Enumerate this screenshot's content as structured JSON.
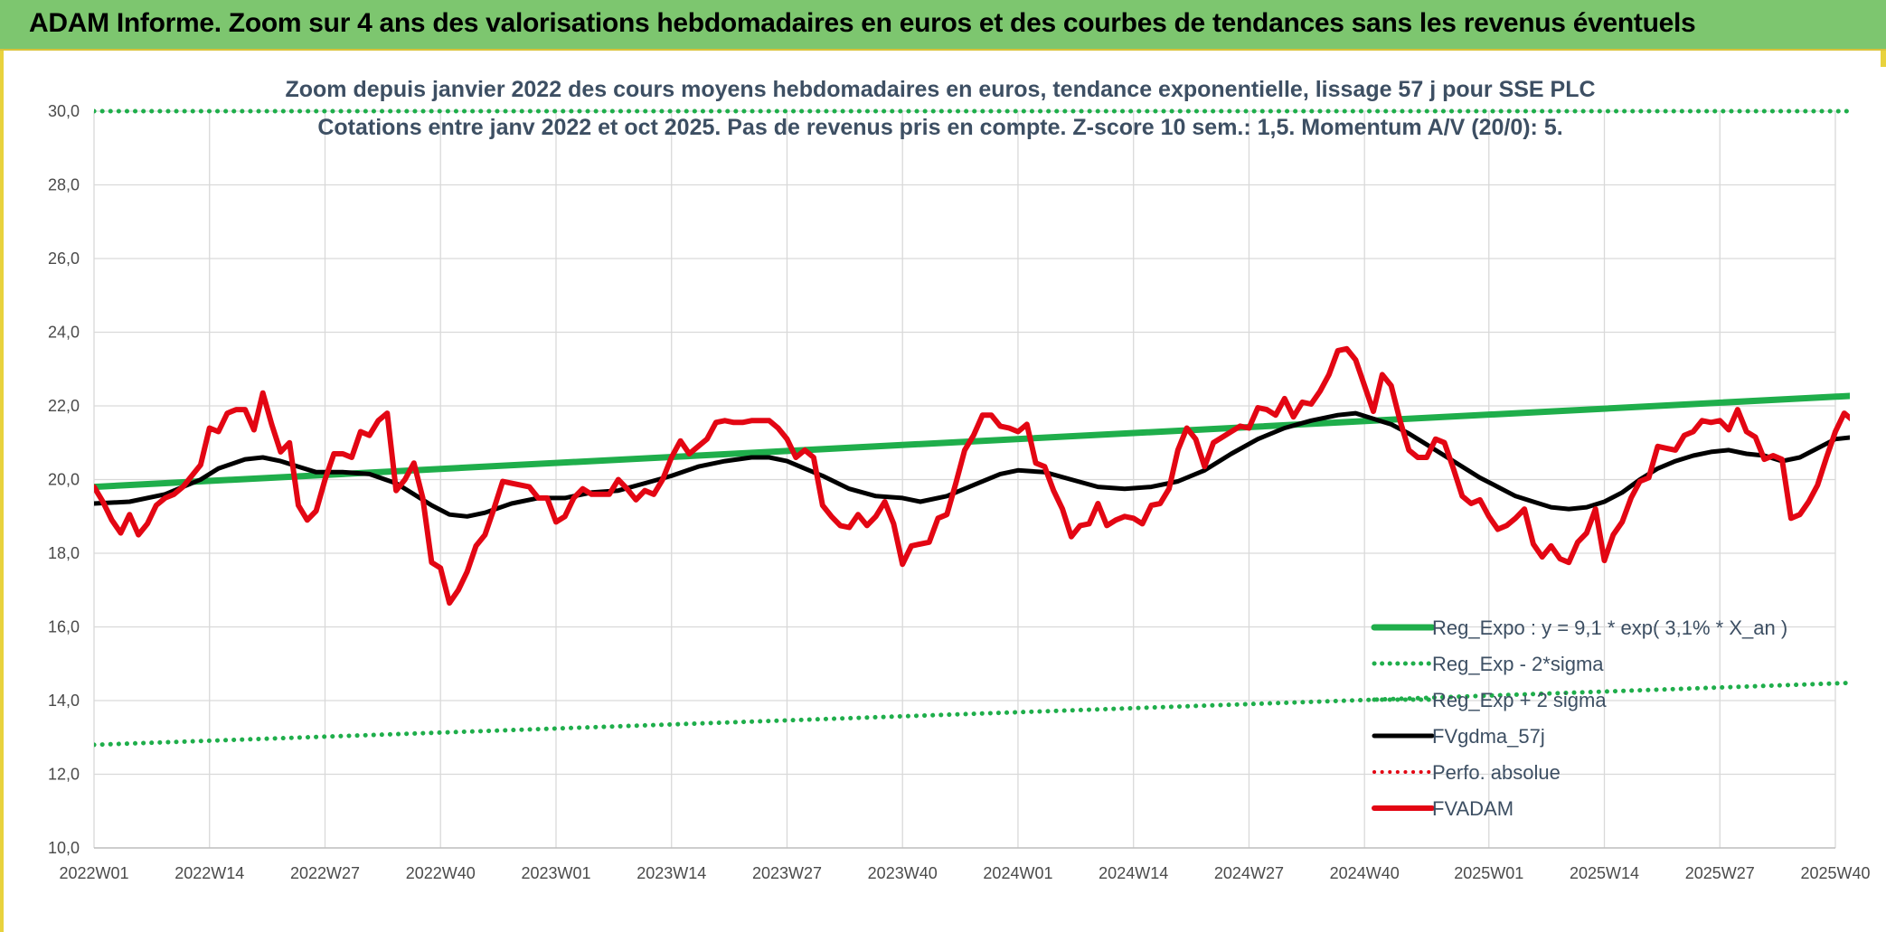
{
  "banner": {
    "title": "ADAM Informe. Zoom sur 4 ans des valorisations hebdomadaires en euros et des courbes de tendances sans les revenus éventuels"
  },
  "chart_data": {
    "type": "line",
    "title": "Zoom depuis janvier 2022 des cours moyens hebdomadaires en euros, tendance exponentielle, lissage 57 j pour SSE PLC",
    "subtitle": "Cotations entre janv 2022 et oct 2025. Pas de revenus pris en compte. Z-score 10 sem.: 1,5. Momentum A/V (20/0): 5.",
    "xlabel": "",
    "ylabel": "",
    "ylim": [
      10,
      30
    ],
    "yticks": [
      "10,0",
      "12,0",
      "14,0",
      "16,0",
      "18,0",
      "20,0",
      "22,0",
      "24,0",
      "26,0",
      "28,0",
      "30,0"
    ],
    "x_range": [
      0,
      196
    ],
    "x_ticks": [
      {
        "label": "2022W01",
        "x": 0
      },
      {
        "label": "2022W14",
        "x": 13
      },
      {
        "label": "2022W27",
        "x": 26
      },
      {
        "label": "2022W40",
        "x": 39
      },
      {
        "label": "2023W01",
        "x": 52
      },
      {
        "label": "2023W14",
        "x": 65
      },
      {
        "label": "2023W27",
        "x": 78
      },
      {
        "label": "2023W40",
        "x": 91
      },
      {
        "label": "2024W01",
        "x": 104
      },
      {
        "label": "2024W14",
        "x": 117
      },
      {
        "label": "2024W27",
        "x": 130
      },
      {
        "label": "2024W40",
        "x": 143
      },
      {
        "label": "2025W01",
        "x": 157
      },
      {
        "label": "2025W14",
        "x": 170
      },
      {
        "label": "2025W27",
        "x": 183
      },
      {
        "label": "2025W40",
        "x": 196
      }
    ],
    "grid": true,
    "legend_position": "bottom-right",
    "series": [
      {
        "name": "Reg_Expo : y = 9,1 * exp( 3,1% *  X_an )",
        "color": "#1fae4b",
        "style": "solid",
        "width": 7,
        "points": [
          [
            0,
            19.8
          ],
          [
            200,
            22.3
          ]
        ]
      },
      {
        "name": "Reg_Exp - 2*sigma",
        "color": "#1fae4b",
        "style": "dotted",
        "width": 5,
        "points": [
          [
            0,
            12.8
          ],
          [
            200,
            14.5
          ]
        ]
      },
      {
        "name": "Reg_Exp + 2 sigma",
        "color": "#1fae4b",
        "style": "dotted",
        "width": 5,
        "points": [
          [
            0,
            30.0
          ],
          [
            200,
            30.0
          ]
        ]
      },
      {
        "name": "FVgdma_57j",
        "color": "#000000",
        "style": "solid",
        "width": 5,
        "points": [
          [
            0,
            19.35
          ],
          [
            4,
            19.4
          ],
          [
            8,
            19.6
          ],
          [
            12,
            20.0
          ],
          [
            14,
            20.3
          ],
          [
            17,
            20.55
          ],
          [
            19,
            20.6
          ],
          [
            21,
            20.5
          ],
          [
            23,
            20.35
          ],
          [
            25,
            20.2
          ],
          [
            28,
            20.2
          ],
          [
            31,
            20.15
          ],
          [
            34,
            19.9
          ],
          [
            36,
            19.6
          ],
          [
            38,
            19.3
          ],
          [
            40,
            19.05
          ],
          [
            42,
            19.0
          ],
          [
            44,
            19.1
          ],
          [
            47,
            19.35
          ],
          [
            50,
            19.5
          ],
          [
            53,
            19.5
          ],
          [
            56,
            19.65
          ],
          [
            59,
            19.7
          ],
          [
            62,
            19.9
          ],
          [
            65,
            20.1
          ],
          [
            68,
            20.35
          ],
          [
            71,
            20.5
          ],
          [
            74,
            20.6
          ],
          [
            76,
            20.6
          ],
          [
            78,
            20.5
          ],
          [
            80,
            20.3
          ],
          [
            82,
            20.1
          ],
          [
            85,
            19.75
          ],
          [
            88,
            19.55
          ],
          [
            91,
            19.5
          ],
          [
            93,
            19.4
          ],
          [
            96,
            19.55
          ],
          [
            99,
            19.85
          ],
          [
            102,
            20.15
          ],
          [
            104,
            20.25
          ],
          [
            107,
            20.2
          ],
          [
            110,
            20.0
          ],
          [
            113,
            19.8
          ],
          [
            116,
            19.75
          ],
          [
            119,
            19.8
          ],
          [
            122,
            19.95
          ],
          [
            125,
            20.25
          ],
          [
            128,
            20.7
          ],
          [
            131,
            21.1
          ],
          [
            134,
            21.4
          ],
          [
            137,
            21.6
          ],
          [
            140,
            21.75
          ],
          [
            142,
            21.8
          ],
          [
            144,
            21.65
          ],
          [
            146,
            21.5
          ],
          [
            148,
            21.25
          ],
          [
            150,
            20.95
          ],
          [
            152,
            20.65
          ],
          [
            154,
            20.35
          ],
          [
            156,
            20.05
          ],
          [
            158,
            19.8
          ],
          [
            160,
            19.55
          ],
          [
            162,
            19.4
          ],
          [
            164,
            19.25
          ],
          [
            166,
            19.2
          ],
          [
            168,
            19.25
          ],
          [
            170,
            19.4
          ],
          [
            172,
            19.65
          ],
          [
            174,
            20.0
          ],
          [
            176,
            20.3
          ],
          [
            178,
            20.5
          ],
          [
            180,
            20.65
          ],
          [
            182,
            20.75
          ],
          [
            184,
            20.8
          ],
          [
            186,
            20.7
          ],
          [
            188,
            20.65
          ],
          [
            190,
            20.5
          ],
          [
            192,
            20.6
          ],
          [
            194,
            20.85
          ],
          [
            196,
            21.1
          ],
          [
            200,
            21.2
          ]
        ]
      },
      {
        "name": "Perfo. absolue",
        "color": "#e30613",
        "style": "dotted",
        "width": 4,
        "points": []
      },
      {
        "name": "FVADAM",
        "color": "#e30613",
        "style": "solid",
        "width": 6,
        "points": [
          [
            0,
            19.8
          ],
          [
            1,
            19.4
          ],
          [
            2,
            18.9
          ],
          [
            3,
            18.55
          ],
          [
            4,
            19.05
          ],
          [
            5,
            18.5
          ],
          [
            6,
            18.8
          ],
          [
            7,
            19.3
          ],
          [
            8,
            19.5
          ],
          [
            9,
            19.6
          ],
          [
            10,
            19.8
          ],
          [
            11,
            20.1
          ],
          [
            12,
            20.4
          ],
          [
            13,
            21.4
          ],
          [
            14,
            21.3
          ],
          [
            15,
            21.8
          ],
          [
            16,
            21.9
          ],
          [
            17,
            21.9
          ],
          [
            18,
            21.35
          ],
          [
            19,
            22.35
          ],
          [
            20,
            21.5
          ],
          [
            21,
            20.75
          ],
          [
            22,
            21.0
          ],
          [
            23,
            19.3
          ],
          [
            24,
            18.9
          ],
          [
            25,
            19.15
          ],
          [
            26,
            20.0
          ],
          [
            27,
            20.7
          ],
          [
            28,
            20.7
          ],
          [
            29,
            20.6
          ],
          [
            30,
            21.3
          ],
          [
            31,
            21.2
          ],
          [
            32,
            21.6
          ],
          [
            33,
            21.8
          ],
          [
            34,
            19.7
          ],
          [
            35,
            20.0
          ],
          [
            36,
            20.45
          ],
          [
            37,
            19.5
          ],
          [
            38,
            17.75
          ],
          [
            39,
            17.6
          ],
          [
            40,
            16.65
          ],
          [
            41,
            17.0
          ],
          [
            42,
            17.5
          ],
          [
            43,
            18.2
          ],
          [
            44,
            18.5
          ],
          [
            45,
            19.2
          ],
          [
            46,
            19.95
          ],
          [
            47,
            19.9
          ],
          [
            48,
            19.85
          ],
          [
            49,
            19.8
          ],
          [
            50,
            19.5
          ],
          [
            51,
            19.5
          ],
          [
            52,
            18.85
          ],
          [
            53,
            19.0
          ],
          [
            54,
            19.5
          ],
          [
            55,
            19.75
          ],
          [
            56,
            19.6
          ],
          [
            57,
            19.6
          ],
          [
            58,
            19.6
          ],
          [
            59,
            20.0
          ],
          [
            60,
            19.75
          ],
          [
            61,
            19.45
          ],
          [
            62,
            19.7
          ],
          [
            63,
            19.6
          ],
          [
            64,
            20.0
          ],
          [
            65,
            20.6
          ],
          [
            66,
            21.05
          ],
          [
            67,
            20.7
          ],
          [
            68,
            20.9
          ],
          [
            69,
            21.1
          ],
          [
            70,
            21.55
          ],
          [
            71,
            21.6
          ],
          [
            72,
            21.55
          ],
          [
            73,
            21.55
          ],
          [
            74,
            21.6
          ],
          [
            75,
            21.6
          ],
          [
            76,
            21.6
          ],
          [
            77,
            21.4
          ],
          [
            78,
            21.1
          ],
          [
            79,
            20.6
          ],
          [
            80,
            20.8
          ],
          [
            81,
            20.6
          ],
          [
            82,
            19.3
          ],
          [
            83,
            19.0
          ],
          [
            84,
            18.75
          ],
          [
            85,
            18.7
          ],
          [
            86,
            19.05
          ],
          [
            87,
            18.75
          ],
          [
            88,
            19.0
          ],
          [
            89,
            19.4
          ],
          [
            90,
            18.8
          ],
          [
            91,
            17.7
          ],
          [
            92,
            18.2
          ],
          [
            93,
            18.25
          ],
          [
            94,
            18.3
          ],
          [
            95,
            18.95
          ],
          [
            96,
            19.05
          ],
          [
            97,
            19.9
          ],
          [
            98,
            20.8
          ],
          [
            99,
            21.2
          ],
          [
            100,
            21.75
          ],
          [
            101,
            21.75
          ],
          [
            102,
            21.45
          ],
          [
            103,
            21.4
          ],
          [
            104,
            21.3
          ],
          [
            105,
            21.5
          ],
          [
            106,
            20.45
          ],
          [
            107,
            20.35
          ],
          [
            108,
            19.7
          ],
          [
            109,
            19.2
          ],
          [
            110,
            18.45
          ],
          [
            111,
            18.75
          ],
          [
            112,
            18.8
          ],
          [
            113,
            19.35
          ],
          [
            114,
            18.75
          ],
          [
            115,
            18.9
          ],
          [
            116,
            19.0
          ],
          [
            117,
            18.95
          ],
          [
            118,
            18.8
          ],
          [
            119,
            19.3
          ],
          [
            120,
            19.35
          ],
          [
            121,
            19.75
          ],
          [
            122,
            20.8
          ],
          [
            123,
            21.4
          ],
          [
            124,
            21.1
          ],
          [
            125,
            20.35
          ],
          [
            126,
            21.0
          ],
          [
            127,
            21.15
          ],
          [
            128,
            21.3
          ],
          [
            129,
            21.45
          ],
          [
            130,
            21.4
          ],
          [
            131,
            21.95
          ],
          [
            132,
            21.9
          ],
          [
            133,
            21.75
          ],
          [
            134,
            22.2
          ],
          [
            135,
            21.7
          ],
          [
            136,
            22.1
          ],
          [
            137,
            22.05
          ],
          [
            138,
            22.4
          ],
          [
            139,
            22.85
          ],
          [
            140,
            23.5
          ],
          [
            141,
            23.55
          ],
          [
            142,
            23.25
          ],
          [
            143,
            22.55
          ],
          [
            144,
            21.85
          ],
          [
            145,
            22.85
          ],
          [
            146,
            22.55
          ],
          [
            147,
            21.6
          ],
          [
            148,
            20.8
          ],
          [
            149,
            20.6
          ],
          [
            150,
            20.6
          ],
          [
            151,
            21.1
          ],
          [
            152,
            21.0
          ],
          [
            153,
            20.3
          ],
          [
            154,
            19.55
          ],
          [
            155,
            19.35
          ],
          [
            156,
            19.45
          ],
          [
            157,
            19.0
          ],
          [
            158,
            18.65
          ],
          [
            159,
            18.75
          ],
          [
            160,
            18.95
          ],
          [
            161,
            19.2
          ],
          [
            162,
            18.25
          ],
          [
            163,
            17.9
          ],
          [
            164,
            18.2
          ],
          [
            165,
            17.85
          ],
          [
            166,
            17.75
          ],
          [
            167,
            18.3
          ],
          [
            168,
            18.55
          ],
          [
            169,
            19.2
          ],
          [
            170,
            17.8
          ],
          [
            171,
            18.5
          ],
          [
            172,
            18.85
          ],
          [
            173,
            19.5
          ],
          [
            174,
            19.95
          ],
          [
            175,
            20.05
          ],
          [
            176,
            20.9
          ],
          [
            177,
            20.85
          ],
          [
            178,
            20.8
          ],
          [
            179,
            21.2
          ],
          [
            180,
            21.3
          ],
          [
            181,
            21.6
          ],
          [
            182,
            21.55
          ],
          [
            183,
            21.6
          ],
          [
            184,
            21.35
          ],
          [
            185,
            21.9
          ],
          [
            186,
            21.3
          ],
          [
            187,
            21.15
          ],
          [
            188,
            20.55
          ],
          [
            189,
            20.65
          ],
          [
            190,
            20.55
          ],
          [
            191,
            18.95
          ],
          [
            192,
            19.05
          ],
          [
            193,
            19.4
          ],
          [
            194,
            19.85
          ],
          [
            195,
            20.6
          ],
          [
            196,
            21.3
          ],
          [
            197,
            21.8
          ],
          [
            198,
            21.6
          ]
        ]
      }
    ]
  }
}
